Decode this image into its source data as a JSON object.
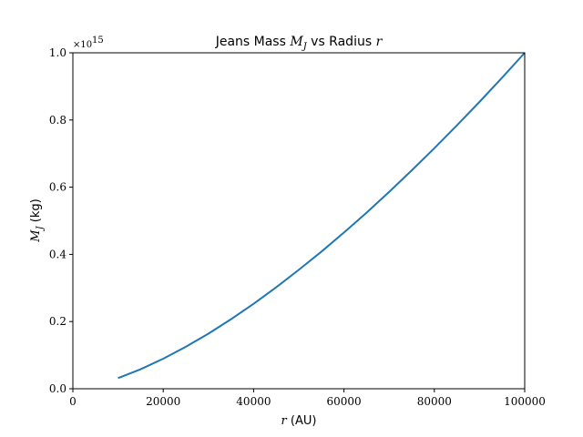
{
  "chart_data": {
    "type": "line",
    "title": {
      "prefix": "Jeans Mass ",
      "math1": "M",
      "math1_sub": "J",
      "middle": " vs Radius ",
      "math2": "r"
    },
    "xlabel": {
      "math": "r",
      "text": " (AU)"
    },
    "ylabel": {
      "math": "M",
      "math_sub": "J",
      "text": " (kg)"
    },
    "y_offset_label": {
      "base": "×10",
      "exponent": "15"
    },
    "xlim": [
      0,
      100000
    ],
    "ylim": [
      0,
      1.0
    ],
    "y_scale_factor": 1000000000000000.0,
    "grid": false,
    "x_ticks": [
      0,
      20000,
      40000,
      60000,
      80000,
      100000
    ],
    "x_tick_labels": [
      "0",
      "20000",
      "40000",
      "60000",
      "80000",
      "100000"
    ],
    "y_ticks": [
      0,
      0.2,
      0.4,
      0.6,
      0.8,
      1.0
    ],
    "y_tick_labels": [
      "0.0",
      "0.2",
      "0.4",
      "0.6",
      "0.8",
      "1.0"
    ],
    "series": [
      {
        "color": "#1f77b4",
        "x": [
          10000,
          15000,
          20000,
          25000,
          30000,
          35000,
          40000,
          45000,
          50000,
          55000,
          60000,
          65000,
          70000,
          75000,
          80000,
          85000,
          90000,
          95000,
          100000
        ],
        "y": [
          0.0316,
          0.0581,
          0.0894,
          0.125,
          0.164,
          0.207,
          0.253,
          0.302,
          0.354,
          0.408,
          0.465,
          0.524,
          0.586,
          0.65,
          0.716,
          0.784,
          0.854,
          0.926,
          1.0
        ]
      }
    ]
  }
}
